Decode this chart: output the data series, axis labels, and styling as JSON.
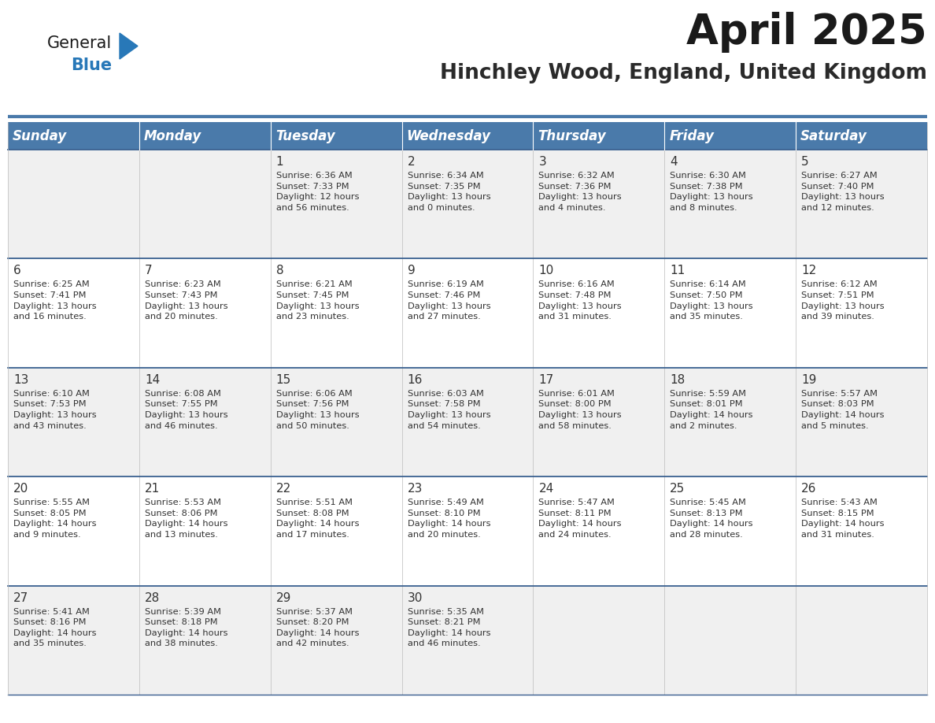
{
  "title": "April 2025",
  "subtitle": "Hinchley Wood, England, United Kingdom",
  "header_color": "#4a7aaa",
  "header_text_color": "#ffffff",
  "cell_bg_row0": "#f0f0f0",
  "cell_bg_row1": "#ffffff",
  "border_color": "#3a6090",
  "text_color": "#333333",
  "day_names": [
    "Sunday",
    "Monday",
    "Tuesday",
    "Wednesday",
    "Thursday",
    "Friday",
    "Saturday"
  ],
  "title_fontsize": 38,
  "subtitle_fontsize": 19,
  "header_fontsize": 12,
  "cell_fontsize": 8.2,
  "day_num_fontsize": 11,
  "logo_general_size": 15,
  "logo_blue_size": 15,
  "weeks": [
    [
      {
        "day": null,
        "info": null
      },
      {
        "day": null,
        "info": null
      },
      {
        "day": "1",
        "info": "Sunrise: 6:36 AM\nSunset: 7:33 PM\nDaylight: 12 hours\nand 56 minutes."
      },
      {
        "day": "2",
        "info": "Sunrise: 6:34 AM\nSunset: 7:35 PM\nDaylight: 13 hours\nand 0 minutes."
      },
      {
        "day": "3",
        "info": "Sunrise: 6:32 AM\nSunset: 7:36 PM\nDaylight: 13 hours\nand 4 minutes."
      },
      {
        "day": "4",
        "info": "Sunrise: 6:30 AM\nSunset: 7:38 PM\nDaylight: 13 hours\nand 8 minutes."
      },
      {
        "day": "5",
        "info": "Sunrise: 6:27 AM\nSunset: 7:40 PM\nDaylight: 13 hours\nand 12 minutes."
      }
    ],
    [
      {
        "day": "6",
        "info": "Sunrise: 6:25 AM\nSunset: 7:41 PM\nDaylight: 13 hours\nand 16 minutes."
      },
      {
        "day": "7",
        "info": "Sunrise: 6:23 AM\nSunset: 7:43 PM\nDaylight: 13 hours\nand 20 minutes."
      },
      {
        "day": "8",
        "info": "Sunrise: 6:21 AM\nSunset: 7:45 PM\nDaylight: 13 hours\nand 23 minutes."
      },
      {
        "day": "9",
        "info": "Sunrise: 6:19 AM\nSunset: 7:46 PM\nDaylight: 13 hours\nand 27 minutes."
      },
      {
        "day": "10",
        "info": "Sunrise: 6:16 AM\nSunset: 7:48 PM\nDaylight: 13 hours\nand 31 minutes."
      },
      {
        "day": "11",
        "info": "Sunrise: 6:14 AM\nSunset: 7:50 PM\nDaylight: 13 hours\nand 35 minutes."
      },
      {
        "day": "12",
        "info": "Sunrise: 6:12 AM\nSunset: 7:51 PM\nDaylight: 13 hours\nand 39 minutes."
      }
    ],
    [
      {
        "day": "13",
        "info": "Sunrise: 6:10 AM\nSunset: 7:53 PM\nDaylight: 13 hours\nand 43 minutes."
      },
      {
        "day": "14",
        "info": "Sunrise: 6:08 AM\nSunset: 7:55 PM\nDaylight: 13 hours\nand 46 minutes."
      },
      {
        "day": "15",
        "info": "Sunrise: 6:06 AM\nSunset: 7:56 PM\nDaylight: 13 hours\nand 50 minutes."
      },
      {
        "day": "16",
        "info": "Sunrise: 6:03 AM\nSunset: 7:58 PM\nDaylight: 13 hours\nand 54 minutes."
      },
      {
        "day": "17",
        "info": "Sunrise: 6:01 AM\nSunset: 8:00 PM\nDaylight: 13 hours\nand 58 minutes."
      },
      {
        "day": "18",
        "info": "Sunrise: 5:59 AM\nSunset: 8:01 PM\nDaylight: 14 hours\nand 2 minutes."
      },
      {
        "day": "19",
        "info": "Sunrise: 5:57 AM\nSunset: 8:03 PM\nDaylight: 14 hours\nand 5 minutes."
      }
    ],
    [
      {
        "day": "20",
        "info": "Sunrise: 5:55 AM\nSunset: 8:05 PM\nDaylight: 14 hours\nand 9 minutes."
      },
      {
        "day": "21",
        "info": "Sunrise: 5:53 AM\nSunset: 8:06 PM\nDaylight: 14 hours\nand 13 minutes."
      },
      {
        "day": "22",
        "info": "Sunrise: 5:51 AM\nSunset: 8:08 PM\nDaylight: 14 hours\nand 17 minutes."
      },
      {
        "day": "23",
        "info": "Sunrise: 5:49 AM\nSunset: 8:10 PM\nDaylight: 14 hours\nand 20 minutes."
      },
      {
        "day": "24",
        "info": "Sunrise: 5:47 AM\nSunset: 8:11 PM\nDaylight: 14 hours\nand 24 minutes."
      },
      {
        "day": "25",
        "info": "Sunrise: 5:45 AM\nSunset: 8:13 PM\nDaylight: 14 hours\nand 28 minutes."
      },
      {
        "day": "26",
        "info": "Sunrise: 5:43 AM\nSunset: 8:15 PM\nDaylight: 14 hours\nand 31 minutes."
      }
    ],
    [
      {
        "day": "27",
        "info": "Sunrise: 5:41 AM\nSunset: 8:16 PM\nDaylight: 14 hours\nand 35 minutes."
      },
      {
        "day": "28",
        "info": "Sunrise: 5:39 AM\nSunset: 8:18 PM\nDaylight: 14 hours\nand 38 minutes."
      },
      {
        "day": "29",
        "info": "Sunrise: 5:37 AM\nSunset: 8:20 PM\nDaylight: 14 hours\nand 42 minutes."
      },
      {
        "day": "30",
        "info": "Sunrise: 5:35 AM\nSunset: 8:21 PM\nDaylight: 14 hours\nand 46 minutes."
      },
      {
        "day": null,
        "info": null
      },
      {
        "day": null,
        "info": null
      },
      {
        "day": null,
        "info": null
      }
    ]
  ]
}
